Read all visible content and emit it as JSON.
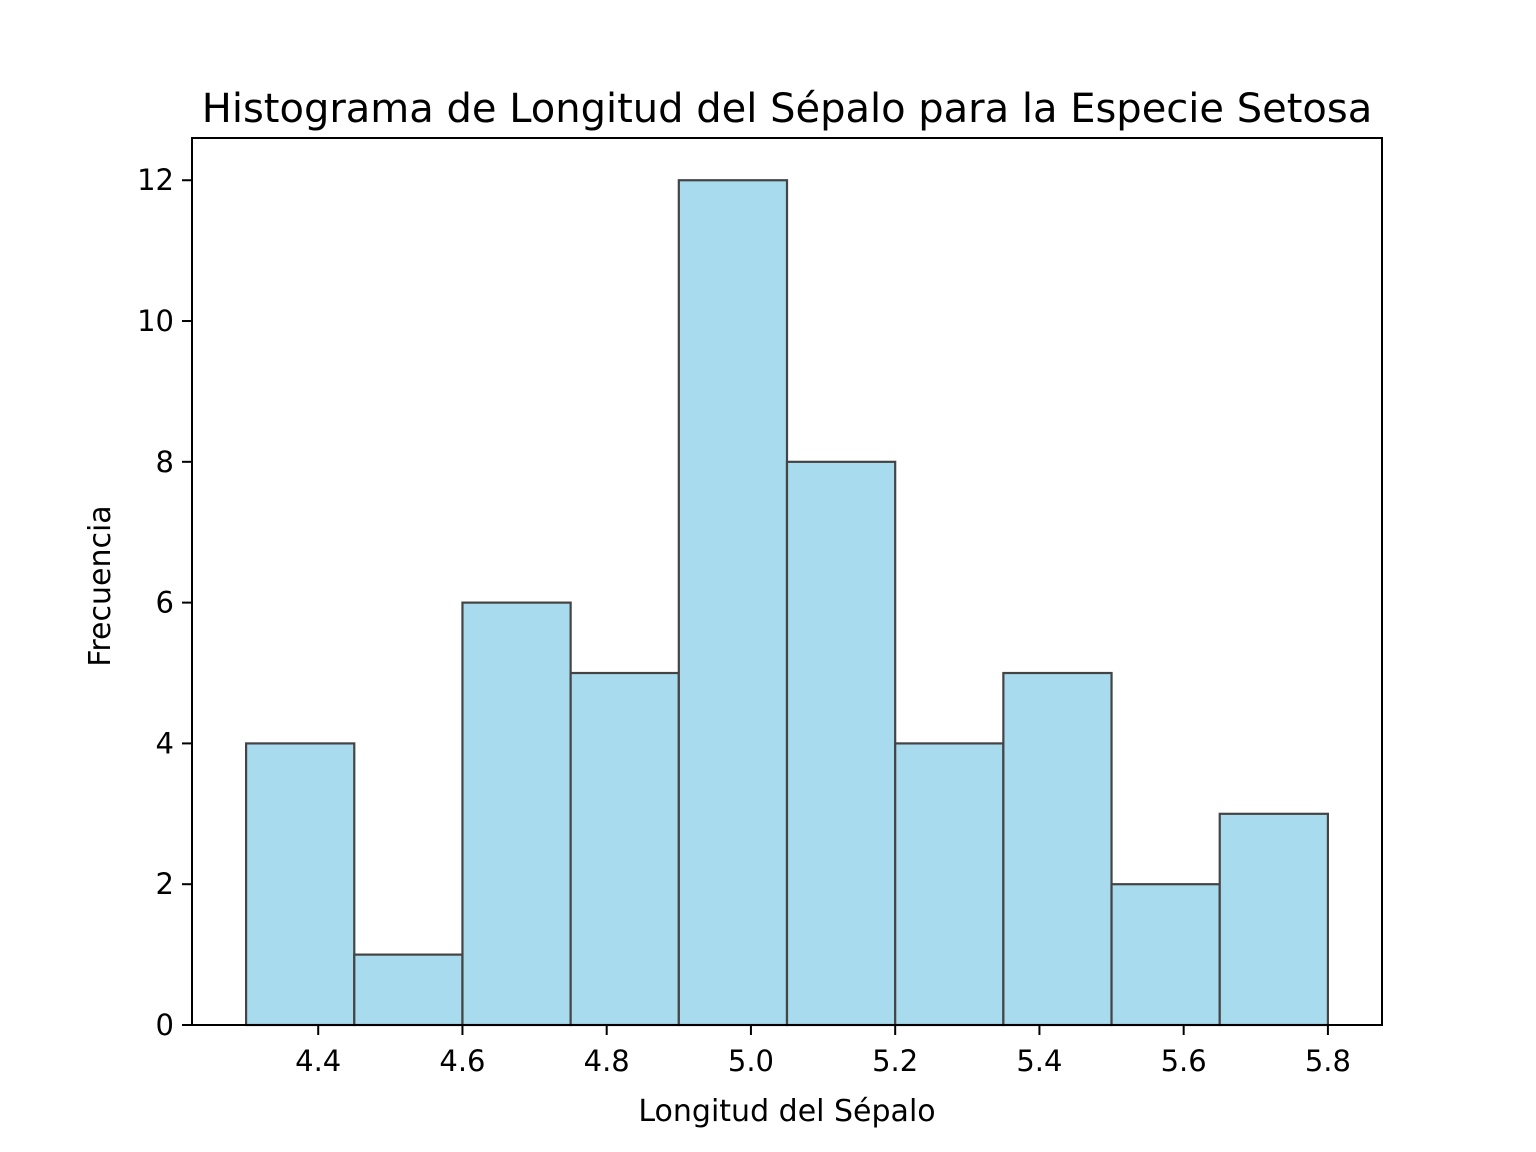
{
  "chart_data": {
    "type": "bar",
    "subtype": "histogram",
    "title": "Histograma de Longitud del Sépalo para la Especie Setosa",
    "xlabel": "Longitud del Sépalo",
    "ylabel": "Frecuencia",
    "bin_edges": [
      4.3,
      4.45,
      4.6,
      4.75,
      4.9,
      5.05,
      5.2,
      5.35,
      5.5,
      5.65,
      5.8
    ],
    "values": [
      4,
      1,
      6,
      5,
      12,
      8,
      4,
      5,
      2,
      3
    ],
    "xlim": [
      4.225,
      5.875
    ],
    "ylim": [
      0,
      12.6
    ],
    "xticks": [
      4.4,
      4.6,
      4.8,
      5.0,
      5.2,
      5.4,
      5.6,
      5.8
    ],
    "xtick_labels": [
      "4.4",
      "4.6",
      "4.8",
      "5.0",
      "5.2",
      "5.4",
      "5.6",
      "5.8"
    ],
    "yticks": [
      0,
      2,
      4,
      6,
      8,
      10,
      12
    ],
    "ytick_labels": [
      "0",
      "2",
      "4",
      "6",
      "8",
      "10",
      "12"
    ],
    "grid": false,
    "bar_color": "#a9dbee",
    "edge_color": "#444444"
  }
}
